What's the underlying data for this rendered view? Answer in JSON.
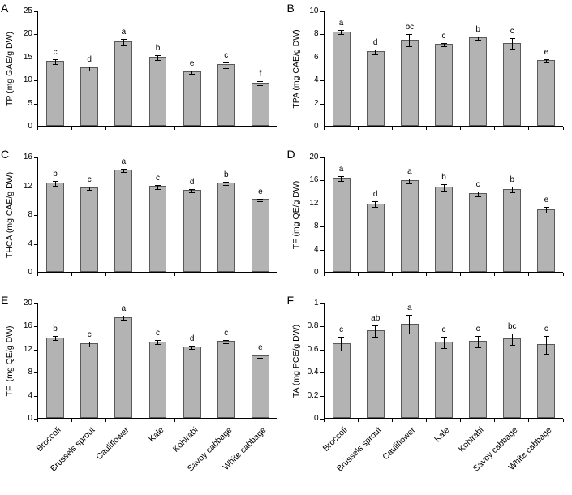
{
  "colors": {
    "bar_fill": "#b3b3b3",
    "bar_border": "#595959",
    "axis": "#000000",
    "background": "#ffffff"
  },
  "categories": [
    "Broccoli",
    "Brussels sprout",
    "Cauliflower",
    "Kale",
    "Kohlrabi",
    "Savoy cabbage",
    "White cabbage"
  ],
  "chart_data": [
    {
      "type": "bar",
      "panel": "A",
      "title": "",
      "xlabel": "",
      "ylabel": "TP (mg GAE/g DW)",
      "ylim": [
        0,
        25
      ],
      "yticks": [
        "0",
        "5",
        "10",
        "15",
        "20",
        "25"
      ],
      "categories": [
        "Broccoli",
        "Brussels sprout",
        "Cauliflower",
        "Kale",
        "Kohlrabi",
        "Savoy cabbage",
        "White cabbage"
      ],
      "values": [
        14.1,
        12.6,
        18.3,
        15.0,
        11.8,
        13.3,
        9.4
      ],
      "errors": [
        0.5,
        0.4,
        0.7,
        0.5,
        0.4,
        0.6,
        0.4
      ],
      "sig_letters": [
        "c",
        "d",
        "a",
        "b",
        "e",
        "c",
        "f"
      ],
      "x_labels_visible": false,
      "grid": false,
      "legend": "none"
    },
    {
      "type": "bar",
      "panel": "B",
      "title": "",
      "xlabel": "",
      "ylabel": "TPA (mg CAE/g DW)",
      "ylim": [
        0,
        10
      ],
      "yticks": [
        "0",
        "2",
        "4",
        "6",
        "8",
        "10"
      ],
      "categories": [
        "Broccoli",
        "Brussels sprout",
        "Cauliflower",
        "Kale",
        "Kohlrabi",
        "Savoy cabbage",
        "White cabbage"
      ],
      "values": [
        8.2,
        6.5,
        7.5,
        7.1,
        7.7,
        7.2,
        5.7
      ],
      "errors": [
        0.2,
        0.2,
        0.55,
        0.15,
        0.15,
        0.45,
        0.12
      ],
      "sig_letters": [
        "a",
        "d",
        "bc",
        "c",
        "b",
        "c",
        "e"
      ],
      "x_labels_visible": false,
      "grid": false,
      "legend": "none"
    },
    {
      "type": "bar",
      "panel": "C",
      "title": "",
      "xlabel": "",
      "ylabel": "THCA (mg CAE/g DW)",
      "ylim": [
        0,
        16
      ],
      "yticks": [
        "0",
        "4",
        "8",
        "12",
        "16"
      ],
      "categories": [
        "Broccoli",
        "Brussels sprout",
        "Cauliflower",
        "Kale",
        "Kohlrabi",
        "Savoy cabbage",
        "White cabbage"
      ],
      "values": [
        12.4,
        11.7,
        14.2,
        11.9,
        11.4,
        12.4,
        10.1
      ],
      "errors": [
        0.3,
        0.25,
        0.2,
        0.3,
        0.2,
        0.25,
        0.2
      ],
      "sig_letters": [
        "b",
        "c",
        "a",
        "c",
        "d",
        "b",
        "e"
      ],
      "x_labels_visible": false,
      "grid": false,
      "legend": "none"
    },
    {
      "type": "bar",
      "panel": "D",
      "title": "",
      "xlabel": "",
      "ylabel": "TF (mg QE/g DW)",
      "ylim": [
        0,
        20
      ],
      "yticks": [
        "0",
        "4",
        "8",
        "12",
        "16",
        "20"
      ],
      "categories": [
        "Broccoli",
        "Brussels sprout",
        "Cauliflower",
        "Kale",
        "Kohlrabi",
        "Savoy cabbage",
        "White cabbage"
      ],
      "values": [
        16.3,
        11.9,
        15.9,
        14.8,
        13.7,
        14.4,
        10.9
      ],
      "errors": [
        0.4,
        0.5,
        0.4,
        0.6,
        0.4,
        0.5,
        0.5
      ],
      "sig_letters": [
        "a",
        "d",
        "a",
        "b",
        "c",
        "b",
        "e"
      ],
      "x_labels_visible": false,
      "grid": false,
      "legend": "none"
    },
    {
      "type": "bar",
      "panel": "E",
      "title": "",
      "xlabel": "",
      "ylabel": "TFl (mg QE/g DW)",
      "ylim": [
        0,
        20
      ],
      "yticks": [
        "0",
        "4",
        "8",
        "12",
        "16",
        "20"
      ],
      "categories": [
        "Broccoli",
        "Brussels sprout",
        "Cauliflower",
        "Kale",
        "Kohlrabi",
        "Savoy cabbage",
        "White cabbage"
      ],
      "values": [
        14.0,
        13.0,
        17.5,
        13.3,
        12.4,
        13.4,
        10.8
      ],
      "errors": [
        0.4,
        0.4,
        0.35,
        0.3,
        0.3,
        0.3,
        0.3
      ],
      "sig_letters": [
        "b",
        "c",
        "a",
        "c",
        "d",
        "c",
        "e"
      ],
      "x_labels_visible": true,
      "grid": false,
      "legend": "none"
    },
    {
      "type": "bar",
      "panel": "F",
      "title": "",
      "xlabel": "",
      "ylabel": "TA (mg PCE/g DW)",
      "ylim": [
        0,
        1
      ],
      "yticks": [
        "0",
        "0.2",
        "0.4",
        "0.6",
        "0.8",
        "1"
      ],
      "categories": [
        "Broccoli",
        "Brussels sprout",
        "Cauliflower",
        "Kale",
        "Kohlrabi",
        "Savoy cabbage",
        "White cabbage"
      ],
      "values": [
        0.65,
        0.76,
        0.82,
        0.66,
        0.67,
        0.69,
        0.64
      ],
      "errors": [
        0.06,
        0.05,
        0.08,
        0.05,
        0.05,
        0.05,
        0.08
      ],
      "sig_letters": [
        "c",
        "ab",
        "a",
        "c",
        "c",
        "bc",
        "c"
      ],
      "x_labels_visible": true,
      "grid": false,
      "legend": "none"
    }
  ]
}
